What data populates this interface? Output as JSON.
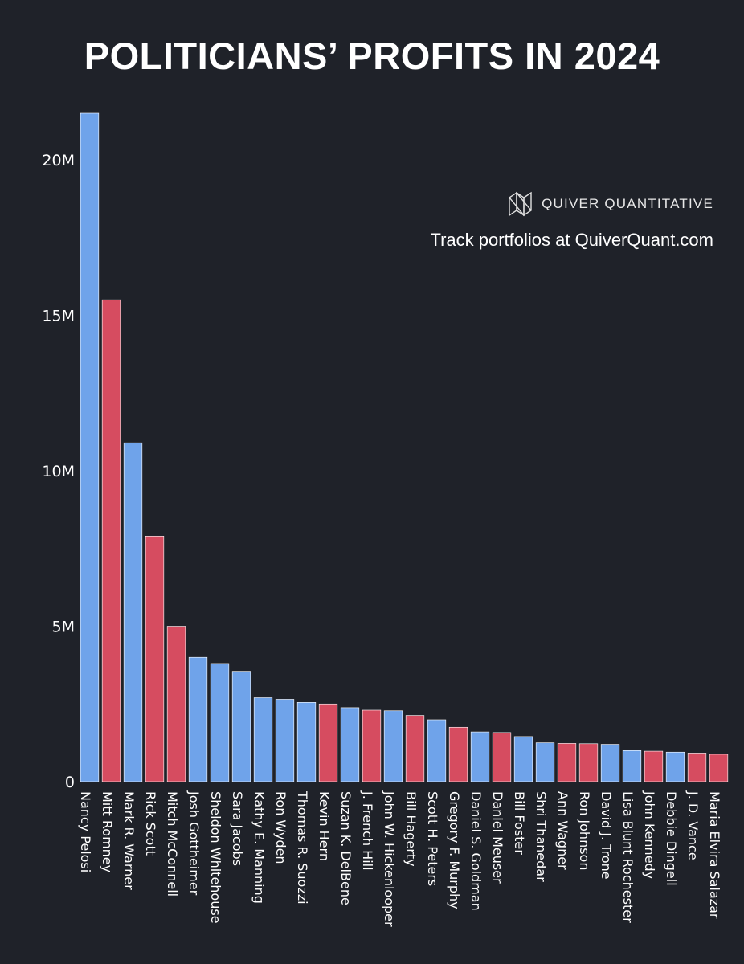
{
  "title": "POLITICIANS’ PROFITS IN 2024",
  "brand": {
    "name": "QUIVER QUANTITATIVE",
    "tagline": "Track portfolios at QuiverQuant.com",
    "logo_icon": "quiver-logo-icon"
  },
  "colors": {
    "background": "#1f2229",
    "democrat_blue": "#6fa3ea",
    "republican_red": "#d64c60"
  },
  "chart_data": {
    "type": "bar",
    "title": "POLITICIANS’ PROFITS IN 2024",
    "xlabel": "",
    "ylabel": "",
    "ylim": [
      0,
      21500000
    ],
    "yticks": [
      {
        "value": 0,
        "label": "0"
      },
      {
        "value": 5000000,
        "label": "5M"
      },
      {
        "value": 10000000,
        "label": "10M"
      },
      {
        "value": 15000000,
        "label": "15M"
      },
      {
        "value": 20000000,
        "label": "20M"
      }
    ],
    "grid": false,
    "categories": [
      "Nancy Pelosi",
      "Mitt Romney",
      "Mark R. Warner",
      "Rick Scott",
      "Mitch McConnell",
      "Josh Gottheimer",
      "Sheldon Whitehouse",
      "Sara Jacobs",
      "Kathy E. Manning",
      "Ron Wyden",
      "Thomas R. Suozzi",
      "Kevin Hern",
      "Suzan K. DelBene",
      "J. French Hill",
      "John W. Hickenlooper",
      "Bill Hagerty",
      "Scott H. Peters",
      "Gregory F. Murphy",
      "Daniel S. Goldman",
      "Daniel Meuser",
      "Bill Foster",
      "Shri Thanedar",
      "Ann Wagner",
      "Ron Johnson",
      "David J. Trone",
      "Lisa Blunt Rochester",
      "John Kennedy",
      "Debbie Dingell",
      "J. D. Vance",
      "Maria Elvira Salazar"
    ],
    "values": [
      21500000,
      15500000,
      10900000,
      7900000,
      5000000,
      4000000,
      3800000,
      3550000,
      2700000,
      2650000,
      2550000,
      2500000,
      2380000,
      2300000,
      2280000,
      2130000,
      1990000,
      1750000,
      1600000,
      1580000,
      1450000,
      1250000,
      1230000,
      1220000,
      1200000,
      1000000,
      980000,
      950000,
      920000,
      880000
    ],
    "colors": [
      "#6fa3ea",
      "#d64c60",
      "#6fa3ea",
      "#d64c60",
      "#d64c60",
      "#6fa3ea",
      "#6fa3ea",
      "#6fa3ea",
      "#6fa3ea",
      "#6fa3ea",
      "#6fa3ea",
      "#d64c60",
      "#6fa3ea",
      "#d64c60",
      "#6fa3ea",
      "#d64c60",
      "#6fa3ea",
      "#d64c60",
      "#6fa3ea",
      "#d64c60",
      "#6fa3ea",
      "#6fa3ea",
      "#d64c60",
      "#d64c60",
      "#6fa3ea",
      "#6fa3ea",
      "#d64c60",
      "#6fa3ea",
      "#d64c60",
      "#d64c60"
    ]
  }
}
